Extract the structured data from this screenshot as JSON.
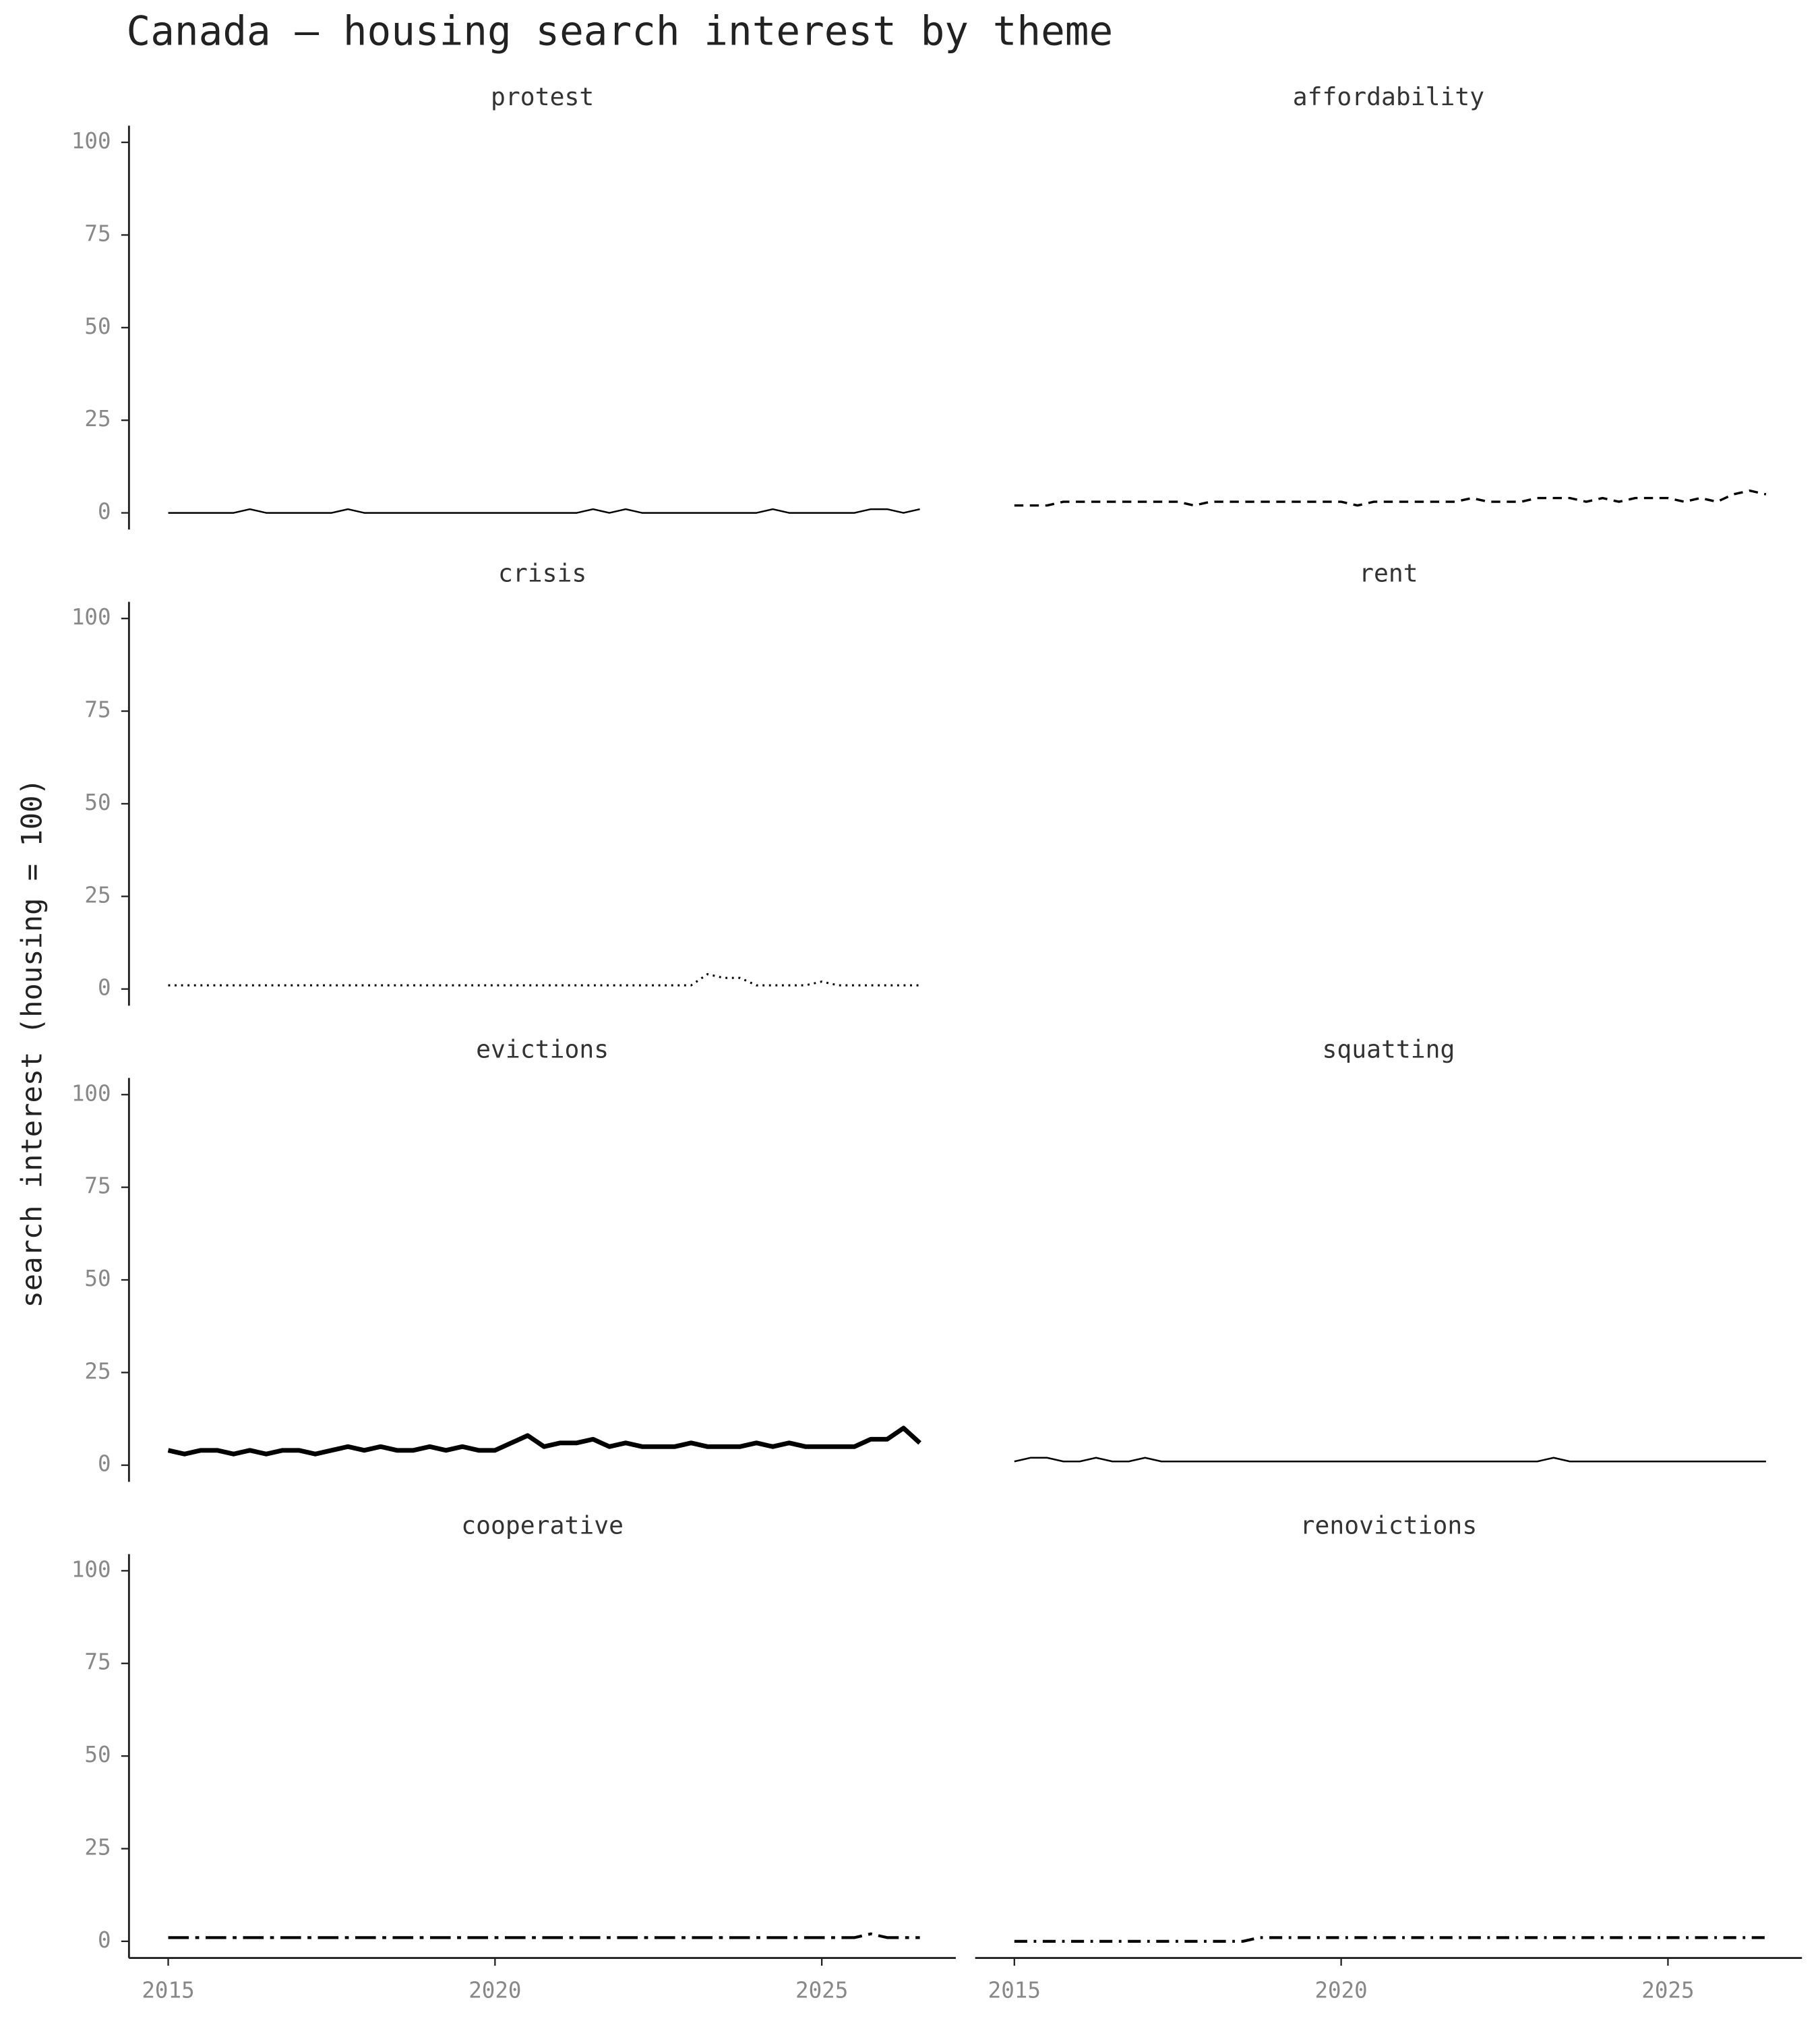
{
  "chart_data": {
    "type": "line",
    "title": "Canada — housing search interest by theme",
    "ylabel": "search interest (housing = 100)",
    "color": "#000000",
    "x": [
      2015,
      2015.25,
      2015.5,
      2015.75,
      2016,
      2016.25,
      2016.5,
      2016.75,
      2017,
      2017.25,
      2017.5,
      2017.75,
      2018,
      2018.25,
      2018.5,
      2018.75,
      2019,
      2019.25,
      2019.5,
      2019.75,
      2020,
      2020.25,
      2020.5,
      2020.75,
      2021,
      2021.25,
      2021.5,
      2021.75,
      2022,
      2022.25,
      2022.5,
      2022.75,
      2023,
      2023.25,
      2023.5,
      2023.75,
      2024,
      2024.25,
      2024.5,
      2024.75,
      2025,
      2025.25,
      2025.5,
      2025.75,
      2026,
      2026.25,
      2026.5
    ],
    "xlim": [
      2014.4,
      2027.05
    ],
    "ylim": [
      -4.5,
      104.5
    ],
    "xticks": [
      2015,
      2020,
      2025
    ],
    "yticks": [
      0,
      25,
      50,
      75,
      100
    ],
    "series": [
      {
        "name": "protest",
        "linestyle": "solid",
        "values": [
          0,
          0,
          0,
          0,
          0,
          1,
          0,
          0,
          0,
          0,
          0,
          1,
          0,
          0,
          0,
          0,
          0,
          0,
          0,
          0,
          0,
          0,
          0,
          0,
          0,
          0,
          1,
          0,
          1,
          0,
          0,
          0,
          0,
          0,
          0,
          0,
          0,
          1,
          0,
          0,
          0,
          0,
          0,
          1,
          1,
          0,
          1
        ]
      },
      {
        "name": "affordability",
        "linestyle": "dashed",
        "values": [
          2,
          2,
          2,
          3,
          3,
          3,
          3,
          3,
          3,
          3,
          3,
          2,
          3,
          3,
          3,
          3,
          3,
          3,
          3,
          3,
          3,
          2,
          3,
          3,
          3,
          3,
          3,
          3,
          4,
          3,
          3,
          3,
          4,
          4,
          4,
          3,
          4,
          3,
          4,
          4,
          4,
          3,
          4,
          3,
          5,
          6,
          5
        ]
      },
      {
        "name": "crisis",
        "linestyle": "dotted",
        "values": [
          1,
          1,
          1,
          1,
          1,
          1,
          1,
          1,
          1,
          1,
          1,
          1,
          1,
          1,
          1,
          1,
          1,
          1,
          1,
          1,
          1,
          1,
          1,
          1,
          1,
          1,
          1,
          1,
          1,
          1,
          1,
          1,
          1,
          4,
          3,
          3,
          1,
          1,
          1,
          1,
          2,
          1,
          1,
          1,
          1,
          1,
          1
        ]
      },
      {
        "name": "rent",
        "linestyle": "solid",
        "values": [
          null,
          null,
          null,
          null,
          null,
          null,
          null,
          null,
          null,
          null,
          null,
          null,
          null,
          null,
          null,
          null,
          null,
          null,
          null,
          null,
          null,
          null,
          null,
          null,
          null,
          null,
          null,
          null,
          null,
          null,
          null,
          null,
          null,
          null,
          null,
          null,
          null,
          null,
          null,
          null,
          null,
          null,
          null,
          null,
          null,
          null,
          null
        ]
      },
      {
        "name": "evictions",
        "linestyle": "thick",
        "values": [
          4,
          3,
          4,
          4,
          3,
          4,
          3,
          4,
          4,
          3,
          4,
          5,
          4,
          5,
          4,
          4,
          5,
          4,
          5,
          4,
          4,
          6,
          8,
          5,
          6,
          6,
          7,
          5,
          6,
          5,
          5,
          5,
          6,
          5,
          5,
          5,
          6,
          5,
          6,
          5,
          5,
          5,
          5,
          7,
          7,
          10,
          6
        ]
      },
      {
        "name": "squatting",
        "linestyle": "solid",
        "values": [
          1,
          2,
          2,
          1,
          1,
          2,
          1,
          1,
          2,
          1,
          1,
          1,
          1,
          1,
          1,
          1,
          1,
          1,
          1,
          1,
          1,
          1,
          1,
          1,
          1,
          1,
          1,
          1,
          1,
          1,
          1,
          1,
          1,
          2,
          1,
          1,
          1,
          1,
          1,
          1,
          1,
          1,
          1,
          1,
          1,
          1,
          1
        ]
      },
      {
        "name": "cooperative",
        "linestyle": "longdashdot",
        "values": [
          1,
          1,
          1,
          1,
          1,
          1,
          1,
          1,
          1,
          1,
          1,
          1,
          1,
          1,
          1,
          1,
          1,
          1,
          1,
          1,
          1,
          1,
          1,
          1,
          1,
          1,
          1,
          1,
          1,
          1,
          1,
          1,
          1,
          1,
          1,
          1,
          1,
          1,
          1,
          1,
          1,
          1,
          1,
          2,
          1,
          1,
          1
        ]
      },
      {
        "name": "renovictions",
        "linestyle": "dashdot",
        "values": [
          0,
          0,
          0,
          0,
          0,
          0,
          0,
          0,
          0,
          0,
          0,
          0,
          0,
          0,
          0,
          1,
          1,
          1,
          1,
          1,
          1,
          1,
          1,
          1,
          1,
          1,
          1,
          1,
          1,
          1,
          1,
          1,
          1,
          1,
          1,
          1,
          1,
          1,
          1,
          1,
          1,
          1,
          1,
          1,
          1,
          1,
          1
        ]
      }
    ]
  }
}
